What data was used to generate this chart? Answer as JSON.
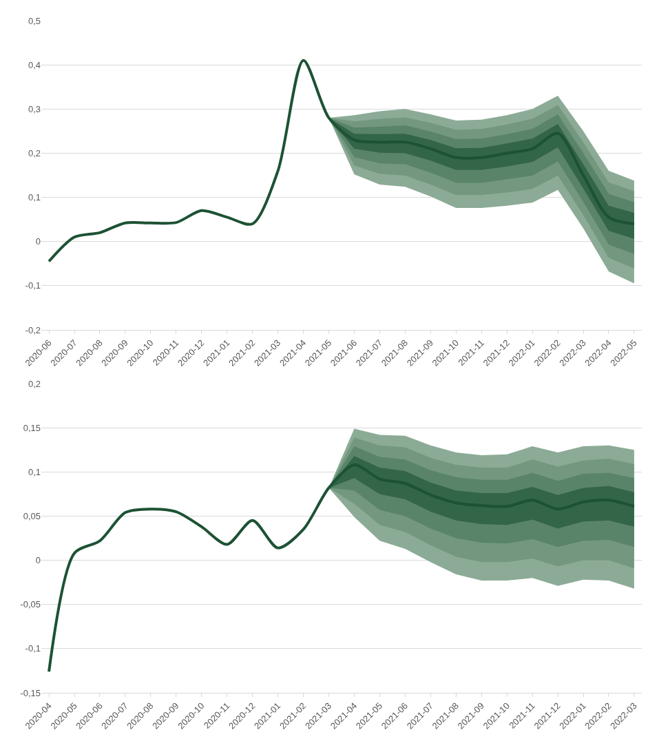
{
  "chart_data": [
    {
      "type": "line",
      "categories": [
        "2020-06",
        "2020-07",
        "2020-08",
        "2020-09",
        "2020-10",
        "2020-11",
        "2020-12",
        "2021-01",
        "2021-02",
        "2021-03",
        "2021-04",
        "2021-05",
        "2021-06",
        "2021-07",
        "2021-08",
        "2021-09",
        "2021-10",
        "2021-11",
        "2021-12",
        "2022-01",
        "2022-02",
        "2022-03",
        "2022-04",
        "2022-05"
      ],
      "ylim": [
        -0.2,
        0.5
      ],
      "yticks": [
        {
          "value": -0.2,
          "label": "-0,2"
        },
        {
          "value": -0.1,
          "label": "-0,1"
        },
        0,
        {
          "value": 0.1,
          "label": "0,1"
        },
        {
          "value": 0.2,
          "label": "0,2"
        },
        {
          "value": 0.3,
          "label": "0,3"
        },
        {
          "value": 0.4,
          "label": "0,4"
        },
        {
          "value": 0.5,
          "label": "0,5"
        }
      ],
      "grid": "y",
      "series": [
        {
          "color": "#8cab96",
          "values": [
            null,
            null,
            null,
            null,
            null,
            null,
            null,
            null,
            null,
            null,
            null,
            null,
            null,
            null,
            null,
            null,
            null,
            null,
            null,
            null,
            null,
            null,
            null,
            null
          ],
          "lower": [
            null,
            null,
            null,
            null,
            null,
            null,
            null,
            null,
            null,
            null,
            null,
            0.28,
            0.152,
            0.129,
            0.124,
            0.102,
            0.076,
            0.076,
            0.081,
            0.088,
            0.117,
            0.03,
            -0.068,
            -0.095
          ],
          "upper": [
            null,
            null,
            null,
            null,
            null,
            null,
            null,
            null,
            null,
            null,
            null,
            0.28,
            0.286,
            0.295,
            0.3,
            0.288,
            0.274,
            0.276,
            0.286,
            0.3,
            0.33,
            0.25,
            0.16,
            0.138
          ]
        },
        {
          "color": "#73987f",
          "values": [
            null,
            null,
            null,
            null,
            null,
            null,
            null,
            null,
            null,
            null,
            null,
            null,
            null,
            null,
            null,
            null,
            null,
            null,
            null,
            null,
            null,
            null,
            null,
            null
          ],
          "lower": [
            null,
            null,
            null,
            null,
            null,
            null,
            null,
            null,
            null,
            null,
            null,
            0.28,
            0.172,
            0.153,
            0.149,
            0.129,
            0.105,
            0.105,
            0.111,
            0.119,
            0.149,
            0.06,
            -0.037,
            -0.061
          ],
          "upper": [
            null,
            null,
            null,
            null,
            null,
            null,
            null,
            null,
            null,
            null,
            null,
            0.28,
            0.272,
            0.278,
            0.281,
            0.269,
            0.253,
            0.255,
            0.265,
            0.278,
            0.309,
            0.225,
            0.134,
            0.114
          ]
        },
        {
          "color": "#5a8469",
          "values": [
            null,
            null,
            null,
            null,
            null,
            null,
            null,
            null,
            null,
            null,
            null,
            null,
            null,
            null,
            null,
            null,
            null,
            null,
            null,
            null,
            null,
            null,
            null,
            null
          ],
          "lower": [
            null,
            null,
            null,
            null,
            null,
            null,
            null,
            null,
            null,
            null,
            null,
            0.28,
            0.191,
            0.177,
            0.175,
            0.156,
            0.133,
            0.133,
            0.141,
            0.149,
            0.181,
            0.09,
            -0.007,
            -0.028
          ],
          "upper": [
            null,
            null,
            null,
            null,
            null,
            null,
            null,
            null,
            null,
            null,
            null,
            0.28,
            0.258,
            0.26,
            0.263,
            0.249,
            0.232,
            0.233,
            0.243,
            0.255,
            0.288,
            0.2,
            0.108,
            0.089
          ]
        },
        {
          "color": "#336548",
          "values": [
            null,
            null,
            null,
            null,
            null,
            null,
            null,
            null,
            null,
            null,
            null,
            null,
            null,
            null,
            null,
            null,
            null,
            null,
            null,
            null,
            null,
            null,
            null,
            null
          ],
          "lower": [
            null,
            null,
            null,
            null,
            null,
            null,
            null,
            null,
            null,
            null,
            null,
            0.28,
            0.21,
            0.201,
            0.2,
            0.183,
            0.162,
            0.162,
            0.17,
            0.18,
            0.213,
            0.12,
            0.024,
            0.006
          ],
          "upper": [
            null,
            null,
            null,
            null,
            null,
            null,
            null,
            null,
            null,
            null,
            null,
            0.28,
            0.244,
            0.243,
            0.244,
            0.23,
            0.211,
            0.212,
            0.222,
            0.233,
            0.266,
            0.175,
            0.081,
            0.065
          ]
        },
        {
          "color": "#1d5234",
          "values": [
            -0.045,
            0.01,
            0.02,
            0.042,
            0.042,
            0.043,
            0.07,
            0.055,
            0.04,
            0.16,
            0.41,
            0.28,
            0.23,
            0.225,
            0.225,
            0.21,
            0.19,
            0.19,
            0.2,
            0.21,
            0.245,
            0.15,
            0.055,
            0.04
          ]
        }
      ]
    },
    {
      "type": "line",
      "categories": [
        "2020-04",
        "2020-05",
        "2020-06",
        "2020-07",
        "2020-08",
        "2020-09",
        "2020-10",
        "2020-11",
        "2020-12",
        "2021-01",
        "2021-02",
        "2021-03",
        "2021-04",
        "2021-05",
        "2021-06",
        "2021-07",
        "2021-08",
        "2021-09",
        "2021-10",
        "2021-11",
        "2021-12",
        "2022-01",
        "2022-02",
        "2022-03"
      ],
      "ylim": [
        -0.15,
        0.2
      ],
      "yticks": [
        {
          "value": -0.15,
          "label": "-0,15"
        },
        {
          "value": -0.1,
          "label": "-0,1"
        },
        {
          "value": -0.05,
          "label": "-0,05"
        },
        0,
        {
          "value": 0.05,
          "label": "0,05"
        },
        {
          "value": 0.1,
          "label": "0,1"
        },
        {
          "value": 0.15,
          "label": "0,15"
        },
        {
          "value": 0.2,
          "label": "0,2"
        }
      ],
      "grid": "y",
      "series": [
        {
          "color": "#8cab96",
          "values": [
            null,
            null,
            null,
            null,
            null,
            null,
            null,
            null,
            null,
            null,
            null,
            null,
            null,
            null,
            null,
            null,
            null,
            null,
            null,
            null,
            null,
            null,
            null,
            null
          ],
          "lower": [
            null,
            null,
            null,
            null,
            null,
            null,
            null,
            null,
            null,
            null,
            null,
            0.082,
            0.049,
            0.022,
            0.013,
            -0.002,
            -0.016,
            -0.023,
            -0.023,
            -0.02,
            -0.029,
            -0.022,
            -0.023,
            -0.032
          ],
          "upper": [
            null,
            null,
            null,
            null,
            null,
            null,
            null,
            null,
            null,
            null,
            null,
            0.082,
            0.149,
            0.142,
            0.141,
            0.13,
            0.122,
            0.119,
            0.12,
            0.129,
            0.122,
            0.129,
            0.13,
            0.125
          ]
        },
        {
          "color": "#73987f",
          "values": [
            null,
            null,
            null,
            null,
            null,
            null,
            null,
            null,
            null,
            null,
            null,
            null,
            null,
            null,
            null,
            null,
            null,
            null,
            null,
            null,
            null,
            null,
            null,
            null
          ],
          "lower": [
            null,
            null,
            null,
            null,
            null,
            null,
            null,
            null,
            null,
            null,
            null,
            0.082,
            0.064,
            0.04,
            0.032,
            0.017,
            0.004,
            -0.002,
            -0.002,
            0.002,
            -0.007,
            0,
            0,
            -0.009
          ],
          "upper": [
            null,
            null,
            null,
            null,
            null,
            null,
            null,
            null,
            null,
            null,
            null,
            0.082,
            0.139,
            0.13,
            0.128,
            0.116,
            0.108,
            0.105,
            0.105,
            0.114,
            0.106,
            0.113,
            0.115,
            0.109
          ]
        },
        {
          "color": "#5a8469",
          "values": [
            null,
            null,
            null,
            null,
            null,
            null,
            null,
            null,
            null,
            null,
            null,
            null,
            null,
            null,
            null,
            null,
            null,
            null,
            null,
            null,
            null,
            null,
            null,
            null
          ],
          "lower": [
            null,
            null,
            null,
            null,
            null,
            null,
            null,
            null,
            null,
            null,
            null,
            0.082,
            0.079,
            0.057,
            0.05,
            0.036,
            0.025,
            0.02,
            0.019,
            0.024,
            0.015,
            0.022,
            0.023,
            0.015
          ],
          "upper": [
            null,
            null,
            null,
            null,
            null,
            null,
            null,
            null,
            null,
            null,
            null,
            0.082,
            0.129,
            0.117,
            0.114,
            0.102,
            0.094,
            0.091,
            0.091,
            0.099,
            0.09,
            0.098,
            0.099,
            0.093
          ]
        },
        {
          "color": "#336548",
          "values": [
            null,
            null,
            null,
            null,
            null,
            null,
            null,
            null,
            null,
            null,
            null,
            null,
            null,
            null,
            null,
            null,
            null,
            null,
            null,
            null,
            null,
            null,
            null,
            null
          ],
          "lower": [
            null,
            null,
            null,
            null,
            null,
            null,
            null,
            null,
            null,
            null,
            null,
            0.082,
            0.093,
            0.075,
            0.069,
            0.055,
            0.045,
            0.041,
            0.04,
            0.046,
            0.036,
            0.044,
            0.045,
            0.038
          ],
          "upper": [
            null,
            null,
            null,
            null,
            null,
            null,
            null,
            null,
            null,
            null,
            null,
            0.082,
            0.118,
            0.105,
            0.101,
            0.088,
            0.079,
            0.076,
            0.076,
            0.083,
            0.074,
            0.082,
            0.084,
            0.077
          ]
        },
        {
          "color": "#1d5234",
          "values": [
            -0.126,
            0.008,
            0.022,
            0.054,
            0.058,
            0.055,
            0.038,
            0.018,
            0.045,
            0.014,
            0.035,
            0.082,
            0.108,
            0.092,
            0.087,
            0.074,
            0.065,
            0.062,
            0.061,
            0.068,
            0.058,
            0.066,
            0.068,
            0.061
          ]
        }
      ]
    }
  ]
}
